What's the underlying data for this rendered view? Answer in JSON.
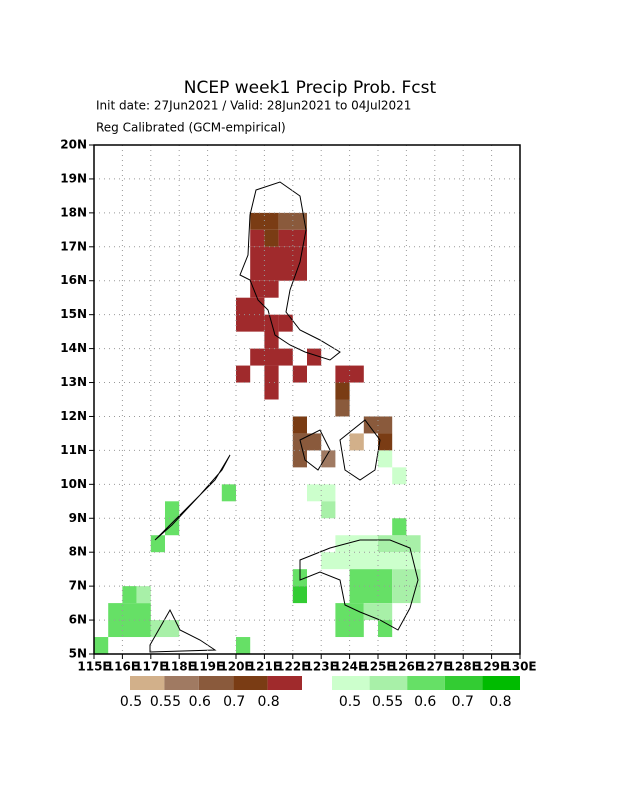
{
  "chart_data": {
    "type": "grid-map",
    "title": "NCEP week1 Precip Prob. Fcst",
    "subtitle": "Init date: 27Jun2021 / Valid: 28Jun2021 to 04Jul2021",
    "subtitle2": "Reg Calibrated (GCM-empirical)",
    "xlim": [
      115,
      130
    ],
    "ylim": [
      5,
      20
    ],
    "xticks": [
      {
        "value": 115,
        "label": "115E"
      },
      {
        "value": 116,
        "label": "116E"
      },
      {
        "value": 117,
        "label": "117E"
      },
      {
        "value": 118,
        "label": "118E"
      },
      {
        "value": 119,
        "label": "119E"
      },
      {
        "value": 120,
        "label": "120E"
      },
      {
        "value": 121,
        "label": "121E"
      },
      {
        "value": 122,
        "label": "122E"
      },
      {
        "value": 123,
        "label": "123E"
      },
      {
        "value": 124,
        "label": "124E"
      },
      {
        "value": 125,
        "label": "125E"
      },
      {
        "value": 126,
        "label": "126E"
      },
      {
        "value": 127,
        "label": "127E"
      },
      {
        "value": 128,
        "label": "128E"
      },
      {
        "value": 129,
        "label": "129E"
      },
      {
        "value": 130,
        "label": "130E"
      }
    ],
    "yticks": [
      {
        "value": 5,
        "label": "5N"
      },
      {
        "value": 6,
        "label": "6N"
      },
      {
        "value": 7,
        "label": "7N"
      },
      {
        "value": 8,
        "label": "8N"
      },
      {
        "value": 9,
        "label": "9N"
      },
      {
        "value": 10,
        "label": "10N"
      },
      {
        "value": 11,
        "label": "11N"
      },
      {
        "value": 12,
        "label": "12N"
      },
      {
        "value": 13,
        "label": "13N"
      },
      {
        "value": 14,
        "label": "14N"
      },
      {
        "value": 15,
        "label": "15N"
      },
      {
        "value": 16,
        "label": "16N"
      },
      {
        "value": 17,
        "label": "17N"
      },
      {
        "value": 18,
        "label": "18N"
      },
      {
        "value": 19,
        "label": "19N"
      },
      {
        "value": 20,
        "label": "20N"
      }
    ],
    "grid": true,
    "dry_levels": [
      0.5,
      0.55,
      0.6,
      0.7,
      0.8
    ],
    "dry_colors": [
      "#d2b08a",
      "#a07a62",
      "#8a5a3c",
      "#7a3c14",
      "#a02a2c"
    ],
    "wet_levels": [
      0.5,
      0.55,
      0.6,
      0.7,
      0.8
    ],
    "wet_colors": [
      "#ccffcc",
      "#a8f0a8",
      "#66e066",
      "#33cc33",
      "#00bb00"
    ],
    "dry_cells": [
      [
        120.5,
        121.5,
        17.5,
        18,
        0.7
      ],
      [
        121.5,
        122.5,
        17.5,
        18,
        0.6
      ],
      [
        120.5,
        121,
        17,
        17.5,
        0.8
      ],
      [
        121,
        121.5,
        17,
        17.5,
        0.7
      ],
      [
        121.5,
        122.5,
        17,
        17.5,
        0.8
      ],
      [
        120.5,
        122.5,
        16,
        17,
        0.8
      ],
      [
        120.5,
        121.5,
        15.5,
        16,
        0.8
      ],
      [
        120,
        121,
        14.5,
        15.5,
        0.8
      ],
      [
        121,
        121.5,
        14,
        15,
        0.8
      ],
      [
        121.5,
        122,
        14.5,
        15,
        0.8
      ],
      [
        120.5,
        122,
        13.5,
        14,
        0.8
      ],
      [
        122.5,
        123,
        13.5,
        14,
        0.8
      ],
      [
        122,
        122.5,
        13,
        13.5,
        0.8
      ],
      [
        120,
        120.5,
        13,
        13.5,
        0.8
      ],
      [
        121,
        121.5,
        12.5,
        13.5,
        0.8
      ],
      [
        123.5,
        124.5,
        13,
        13.5,
        0.8
      ],
      [
        123.5,
        124,
        12.5,
        13,
        0.7
      ],
      [
        123.5,
        124,
        12,
        12.5,
        0.6
      ],
      [
        124.5,
        125.5,
        11.5,
        12,
        0.6
      ],
      [
        125,
        125.5,
        11,
        11.5,
        0.7
      ],
      [
        124,
        124.5,
        11,
        11.5,
        0.5
      ],
      [
        122,
        122.5,
        11.5,
        12,
        0.7
      ],
      [
        122,
        122.5,
        10.5,
        11.5,
        0.6
      ],
      [
        122.5,
        123,
        11,
        11.5,
        0.6
      ],
      [
        123,
        123.5,
        10.5,
        11,
        0.55
      ]
    ],
    "wet_cells": [
      [
        125,
        125.5,
        10.5,
        11,
        0.5
      ],
      [
        125.5,
        126,
        10,
        10.5,
        0.5
      ],
      [
        122.5,
        123.5,
        9.5,
        10,
        0.5
      ],
      [
        123,
        123.5,
        9,
        9.5,
        0.55
      ],
      [
        123.5,
        125,
        8,
        8.5,
        0.5
      ],
      [
        125,
        126.5,
        8,
        8.5,
        0.55
      ],
      [
        125.5,
        126,
        8.5,
        9,
        0.6
      ],
      [
        123,
        126.5,
        7.5,
        8,
        0.5
      ],
      [
        122,
        122.5,
        7,
        7.5,
        0.6
      ],
      [
        122,
        122.5,
        6.5,
        7,
        0.7
      ],
      [
        124,
        125.5,
        6.5,
        7.5,
        0.6
      ],
      [
        125.5,
        126.5,
        6.5,
        7.5,
        0.55
      ],
      [
        123.5,
        124.5,
        5.5,
        6.5,
        0.6
      ],
      [
        124.5,
        125.5,
        6,
        6.5,
        0.55
      ],
      [
        125,
        125.5,
        5.5,
        6,
        0.6
      ],
      [
        115.5,
        117,
        5.5,
        6.5,
        0.6
      ],
      [
        116,
        116.5,
        6.5,
        7,
        0.6
      ],
      [
        116.5,
        117,
        6.5,
        7,
        0.55
      ],
      [
        117,
        118,
        5.5,
        6,
        0.55
      ],
      [
        117.5,
        118,
        8.5,
        9.5,
        0.6
      ],
      [
        117,
        117.5,
        8,
        8.5,
        0.6
      ],
      [
        119.5,
        120,
        9.5,
        10,
        0.6
      ],
      [
        115,
        115.5,
        5,
        5.5,
        0.6
      ],
      [
        120,
        120.5,
        5,
        5.5,
        0.6
      ]
    ]
  }
}
